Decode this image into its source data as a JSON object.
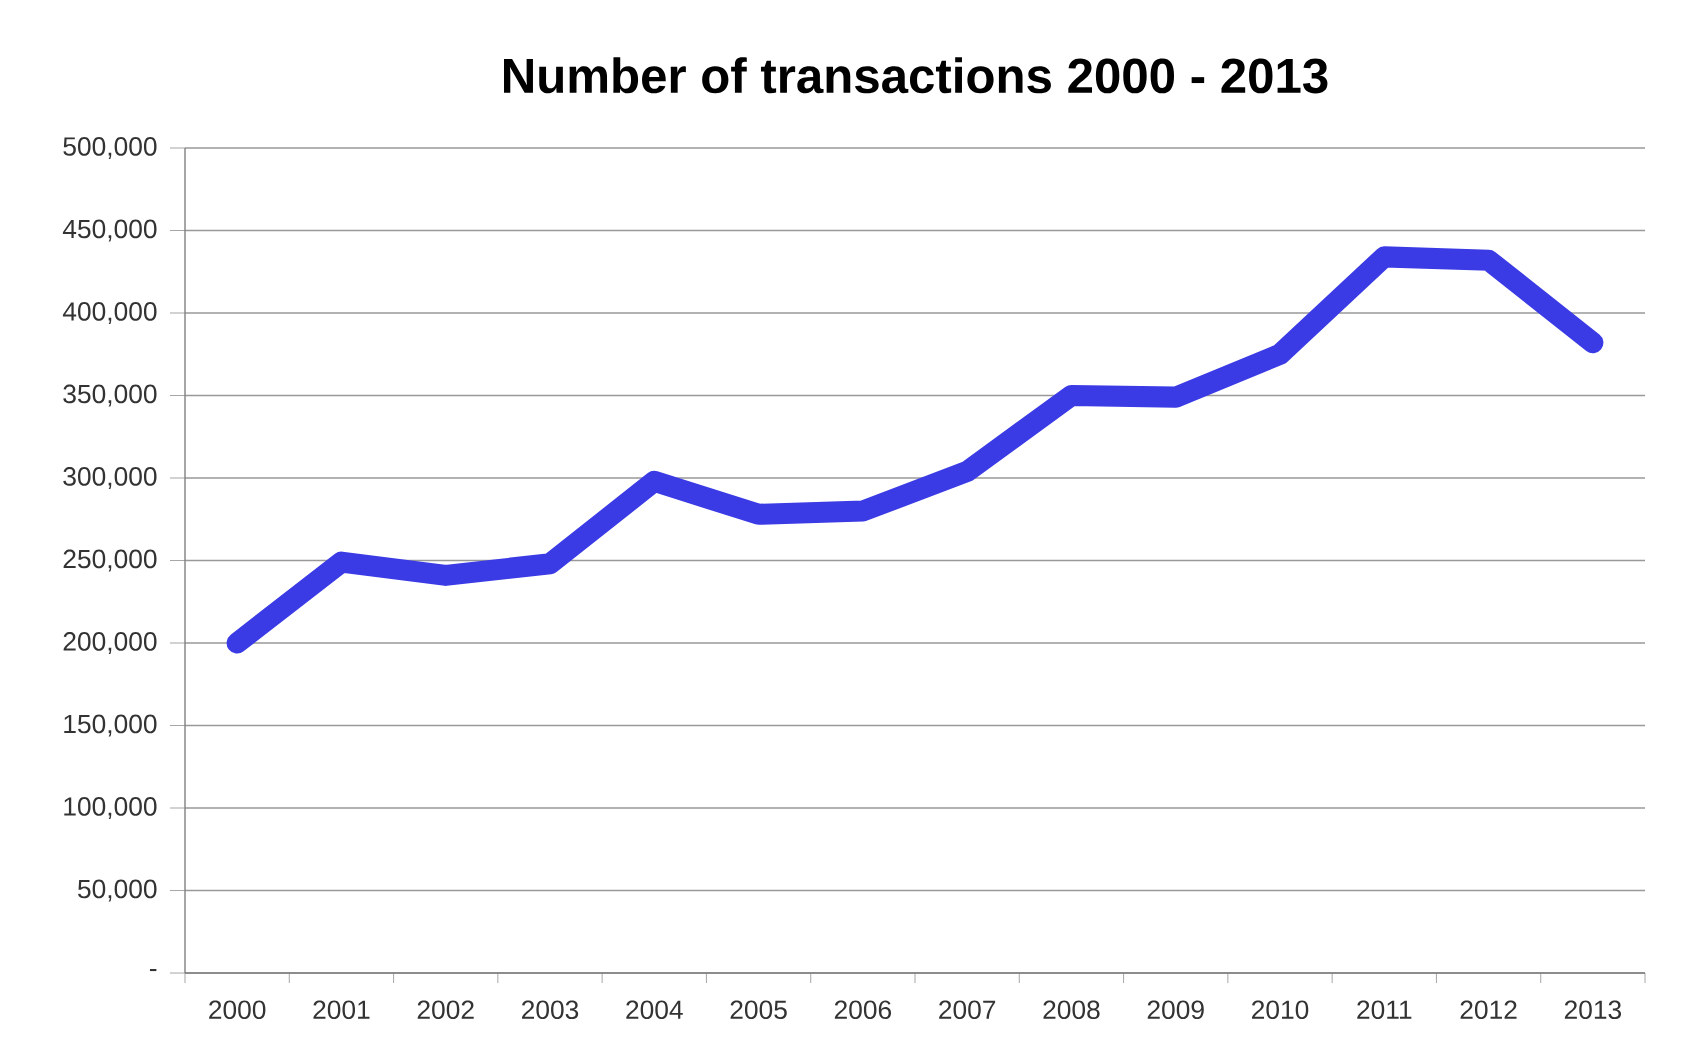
{
  "chart_data": {
    "type": "line",
    "title": "Number of transactions 2000 - 2013",
    "categories": [
      "2000",
      "2001",
      "2002",
      "2003",
      "2004",
      "2005",
      "2006",
      "2007",
      "2008",
      "2009",
      "2010",
      "2011",
      "2012",
      "2013"
    ],
    "values": [
      200000,
      249000,
      241000,
      248000,
      298000,
      278000,
      280000,
      304000,
      350000,
      349000,
      375000,
      434000,
      432000,
      382000
    ],
    "color": "#3b3be6",
    "marker": "none",
    "line_style": "solid",
    "grid": "y",
    "ylim": [
      0,
      500000
    ],
    "yticks": [
      {
        "value": 0,
        "label": "-"
      },
      {
        "value": 50000,
        "label": "50,000"
      },
      {
        "value": 100000,
        "label": "100,000"
      },
      {
        "value": 150000,
        "label": "150,000"
      },
      {
        "value": 200000,
        "label": "200,000"
      },
      {
        "value": 250000,
        "label": "250,000"
      },
      {
        "value": 300000,
        "label": "300,000"
      },
      {
        "value": 350000,
        "label": "350,000"
      },
      {
        "value": 400000,
        "label": "400,000"
      },
      {
        "value": 450000,
        "label": "450,000"
      },
      {
        "value": 500000,
        "label": "500,000"
      }
    ]
  }
}
